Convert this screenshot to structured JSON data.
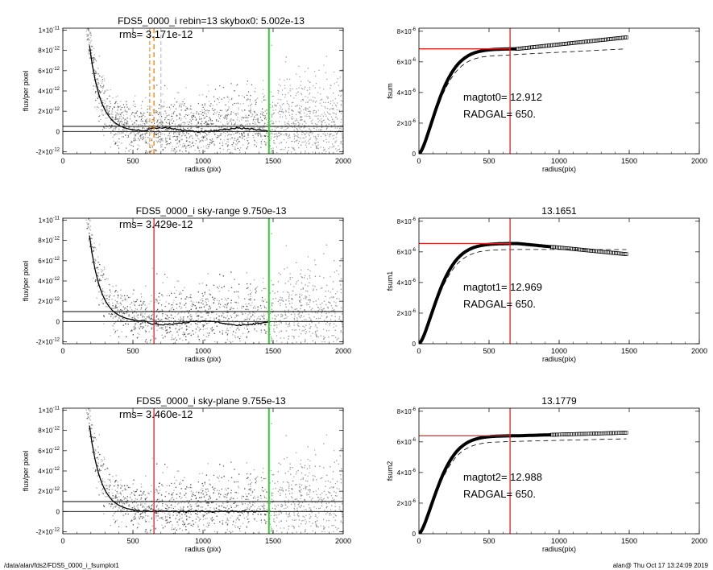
{
  "footer": {
    "path": "/data/alan/fds2/FDS5_0000_i_fsumplot1",
    "stamp": "alan@  Thu Oct 17 13:24:09 2019"
  },
  "chart_data": [
    {
      "type": "scatter",
      "title": "FDS5_0000_i rebin=13    skybox0:  5.002e-13",
      "rms": "rms= 3.171e-12",
      "xlabel": "radius (pix)",
      "ylabel": "flux/per pixel",
      "xlim": [
        0,
        2000
      ],
      "ylim": [
        -2.2e-12,
        1.02e-11
      ],
      "xticks": [
        0,
        500,
        1000,
        1500,
        2000
      ],
      "yticks": [
        -2e-12,
        0,
        2e-12,
        4e-12,
        6e-12,
        8e-12,
        1e-11
      ],
      "ytick_labels": [
        "-2×10-12",
        "0",
        "2×10-12",
        "4×10-12",
        "6×10-12",
        "8×10-12",
        "1×10-11"
      ],
      "sky_level": 5.002e-13,
      "radgal": 650,
      "radgal_line_color": "#f08000",
      "radgal_line_dashed": true,
      "extra_dashed": [
        {
          "x": 620,
          "color": "#f08000"
        },
        {
          "x": 700,
          "color": "#b0b0b0"
        }
      ],
      "outer_radius": 1470,
      "outer_line_color": "#33cc33",
      "profile_tail": 3e-13
    },
    {
      "type": "line",
      "title": "",
      "ylabel": "fsum",
      "xlabel": "radius(pix)",
      "xlim": [
        0,
        2000
      ],
      "ylim": [
        0,
        8.2e-06
      ],
      "xticks": [
        0,
        500,
        1000,
        1500,
        2000
      ],
      "yticks": [
        0,
        2e-06,
        4e-06,
        6e-06,
        8e-06
      ],
      "ytick_labels": [
        "0",
        "2×10-6",
        "4×10-6",
        "6×10-6",
        "8×10-6"
      ],
      "magtot": "magtot0=  12.912",
      "radgal_text": "RADGAL=    650.",
      "radgal": 650,
      "hline": 6.85e-06,
      "final": 7.6e-06,
      "dashed_final": 6.85e-06,
      "marker_start": 700,
      "marker_end": 1480
    },
    {
      "type": "scatter",
      "title": "FDS5_0000_i sky-range  9.750e-13",
      "rms": "rms= 3.429e-12",
      "xlabel": "radius (pix)",
      "ylabel": "flux/per pixel",
      "xlim": [
        0,
        2000
      ],
      "ylim": [
        -2.2e-12,
        1.02e-11
      ],
      "xticks": [
        0,
        500,
        1000,
        1500,
        2000
      ],
      "yticks": [
        -2e-12,
        0,
        2e-12,
        4e-12,
        6e-12,
        8e-12,
        1e-11
      ],
      "ytick_labels": [
        "-2×10-12",
        "0",
        "2×10-12",
        "4×10-12",
        "6×10-12",
        "8×10-12",
        "1×10-11"
      ],
      "sky_level": 9.75e-13,
      "radgal": 650,
      "radgal_line_color": "#dd2222",
      "radgal_line_dashed": false,
      "extra_dashed": [],
      "outer_radius": 1470,
      "outer_line_color": "#33cc33",
      "profile_tail": -3e-13
    },
    {
      "type": "line",
      "title": "13.1651",
      "ylabel": "fsum1",
      "xlabel": "radius(pix)",
      "xlim": [
        0,
        2000
      ],
      "ylim": [
        0,
        8.2e-06
      ],
      "xticks": [
        0,
        500,
        1000,
        1500,
        2000
      ],
      "yticks": [
        0,
        2e-06,
        4e-06,
        6e-06,
        8e-06
      ],
      "ytick_labels": [
        "0",
        "2×10-6",
        "4×10-6",
        "6×10-6",
        "8×10-6"
      ],
      "magtot": "magtot1=  12.969",
      "radgal_text": "RADGAL=    650.",
      "radgal": 650,
      "hline": 6.55e-06,
      "final": 5.85e-06,
      "dashed_final": 6.15e-06,
      "marker_start": 950,
      "marker_end": 1480
    },
    {
      "type": "scatter",
      "title": "FDS5_0000_i sky-plane  9.755e-13",
      "rms": "rms= 3.460e-12",
      "xlabel": "radius (pix)",
      "ylabel": "flux/per pixel",
      "xlim": [
        0,
        2000
      ],
      "ylim": [
        -2.2e-12,
        1.02e-11
      ],
      "xticks": [
        0,
        500,
        1000,
        1500,
        2000
      ],
      "yticks": [
        -2e-12,
        0,
        2e-12,
        4e-12,
        6e-12,
        8e-12,
        1e-11
      ],
      "ytick_labels": [
        "-2×10-12",
        "0",
        "2×10-12",
        "4×10-12",
        "6×10-12",
        "8×10-12",
        "1×10-11"
      ],
      "sky_level": 9.755e-13,
      "radgal": 650,
      "radgal_line_color": "#dd2222",
      "radgal_line_dashed": false,
      "extra_dashed": [],
      "outer_radius": 1470,
      "outer_line_color": "#33cc33",
      "profile_tail": 0
    },
    {
      "type": "line",
      "title": "13.1779",
      "ylabel": "fsum2",
      "xlabel": "radius(pix)",
      "xlim": [
        0,
        2000
      ],
      "ylim": [
        0,
        8.2e-06
      ],
      "xticks": [
        0,
        500,
        1000,
        1500,
        2000
      ],
      "yticks": [
        0,
        2e-06,
        4e-06,
        6e-06,
        8e-06
      ],
      "ytick_labels": [
        "0",
        "2×10-6",
        "4×10-6",
        "6×10-6",
        "8×10-6"
      ],
      "magtot": "magtot2=  12.988",
      "radgal_text": "RADGAL=    650.",
      "radgal": 650,
      "hline": 6.4e-06,
      "final": 6.6e-06,
      "dashed_final": 6.2e-06,
      "marker_start": 950,
      "marker_end": 1480
    }
  ]
}
